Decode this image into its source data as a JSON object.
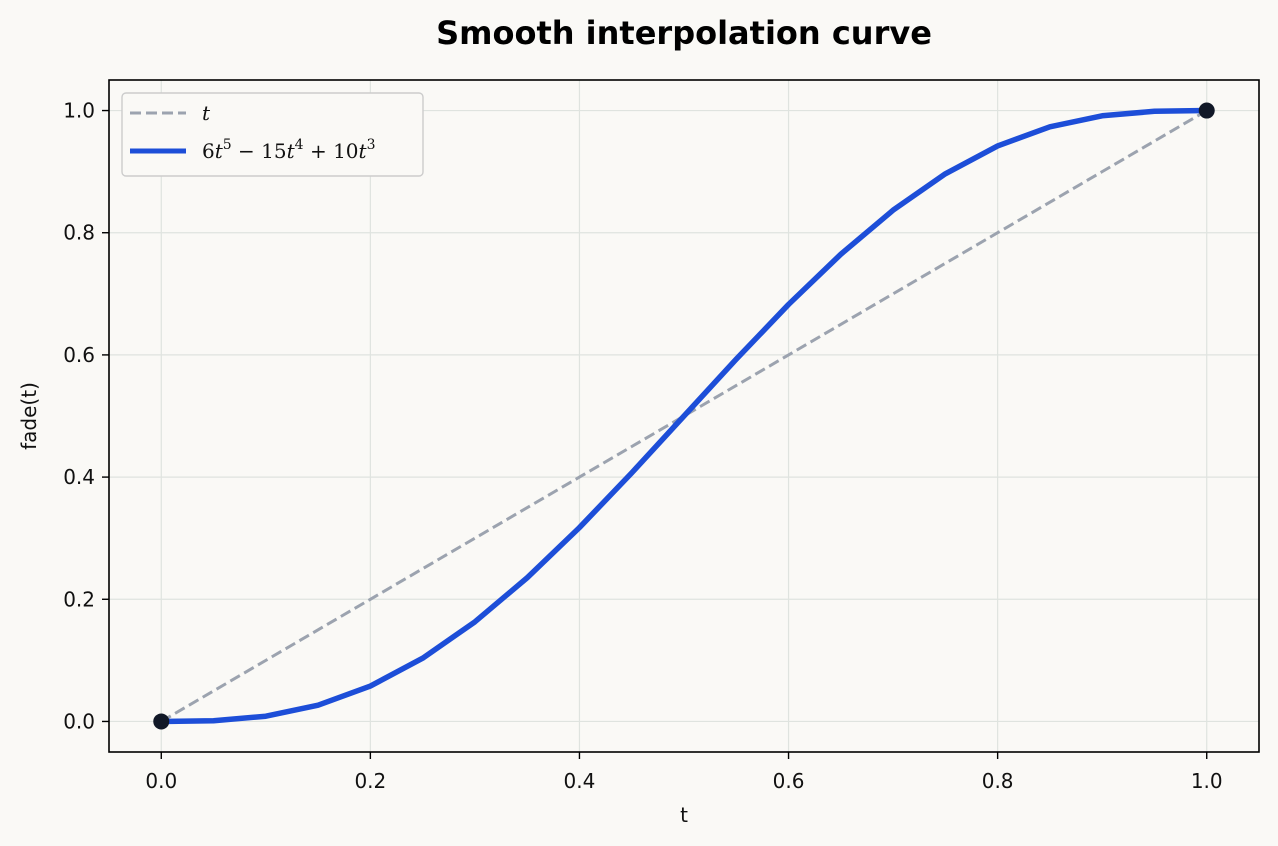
{
  "chart_data": {
    "type": "line",
    "title": "Smooth interpolation curve",
    "xlabel": "t",
    "ylabel": "fade(t)",
    "xlim": [
      -0.05,
      1.05
    ],
    "ylim": [
      -0.05,
      1.05
    ],
    "xticks": [
      "0.0",
      "0.2",
      "0.4",
      "0.6",
      "0.8",
      "1.0"
    ],
    "yticks": [
      "0.0",
      "0.2",
      "0.4",
      "0.6",
      "0.8",
      "1.0"
    ],
    "grid": true,
    "legend_position": "top-left",
    "series": [
      {
        "name": "t",
        "style": "dashed",
        "color": "#9ca3af",
        "x": [
          0.0,
          0.1,
          0.2,
          0.3,
          0.4,
          0.5,
          0.6,
          0.7,
          0.8,
          0.9,
          1.0
        ],
        "y": [
          0.0,
          0.1,
          0.2,
          0.3,
          0.4,
          0.5,
          0.6,
          0.7,
          0.8,
          0.9,
          1.0
        ]
      },
      {
        "name": "6t^5 − 15t^4 + 10t^3",
        "style": "solid",
        "color": "#1d4ed8",
        "x": [
          0.0,
          0.05,
          0.1,
          0.15,
          0.2,
          0.25,
          0.3,
          0.35,
          0.4,
          0.45,
          0.5,
          0.55,
          0.6,
          0.65,
          0.7,
          0.75,
          0.8,
          0.85,
          0.9,
          0.95,
          1.0
        ],
        "y": [
          0.0,
          0.0012,
          0.0086,
          0.0266,
          0.0579,
          0.1035,
          0.1631,
          0.2352,
          0.3174,
          0.4069,
          0.5,
          0.5931,
          0.6826,
          0.7648,
          0.8369,
          0.8965,
          0.9421,
          0.9734,
          0.9914,
          0.9988,
          1.0
        ]
      }
    ],
    "markers": [
      {
        "x": 0.0,
        "y": 0.0,
        "color": "#111827"
      },
      {
        "x": 1.0,
        "y": 1.0,
        "color": "#111827"
      }
    ]
  }
}
